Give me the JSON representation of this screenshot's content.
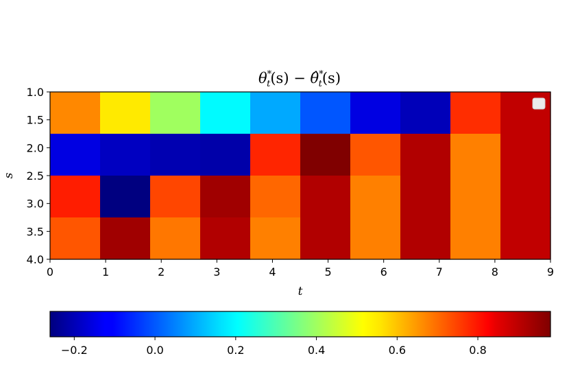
{
  "chart_data": {
    "type": "heatmap",
    "title": "θ*t(s) − θ̂*t(s)",
    "title_parts": {
      "a": "θ",
      "b": "(s) − ",
      "c": "θ̂",
      "d": "(s)",
      "sub": "t",
      "sup": "*"
    },
    "xlabel": "t",
    "ylabel": "s",
    "xlim": [
      0,
      9
    ],
    "ylim": [
      4.0,
      1.0
    ],
    "xticks": [
      "0",
      "1",
      "2",
      "3",
      "4",
      "5",
      "6",
      "7",
      "8",
      "9"
    ],
    "yticks": [
      "1.0",
      "1.5",
      "2.0",
      "2.5",
      "3.0",
      "3.5",
      "4.0"
    ],
    "colormap": "jet",
    "vmin": -0.26,
    "vmax": 0.98,
    "colorbar_ticks": [
      "−0.2",
      "0.0",
      "0.2",
      "0.4",
      "0.6",
      "0.8"
    ],
    "colorbar_tick_values": [
      -0.2,
      0.0,
      0.2,
      0.4,
      0.6,
      0.8
    ],
    "values": [
      [
        0.66,
        0.54,
        0.4,
        0.2,
        0.1,
        0.0,
        -0.14,
        -0.19,
        0.77,
        0.9
      ],
      [
        -0.14,
        -0.18,
        -0.2,
        -0.21,
        0.78,
        0.98,
        0.72,
        0.92,
        0.67,
        0.9
      ],
      [
        0.79,
        -0.26,
        0.74,
        0.94,
        0.7,
        0.92,
        0.67,
        0.92,
        0.67,
        0.9
      ],
      [
        0.72,
        0.94,
        0.68,
        0.92,
        0.67,
        0.92,
        0.67,
        0.92,
        0.67,
        0.9
      ]
    ],
    "legend": {
      "placement": "upper right",
      "entries": []
    }
  }
}
